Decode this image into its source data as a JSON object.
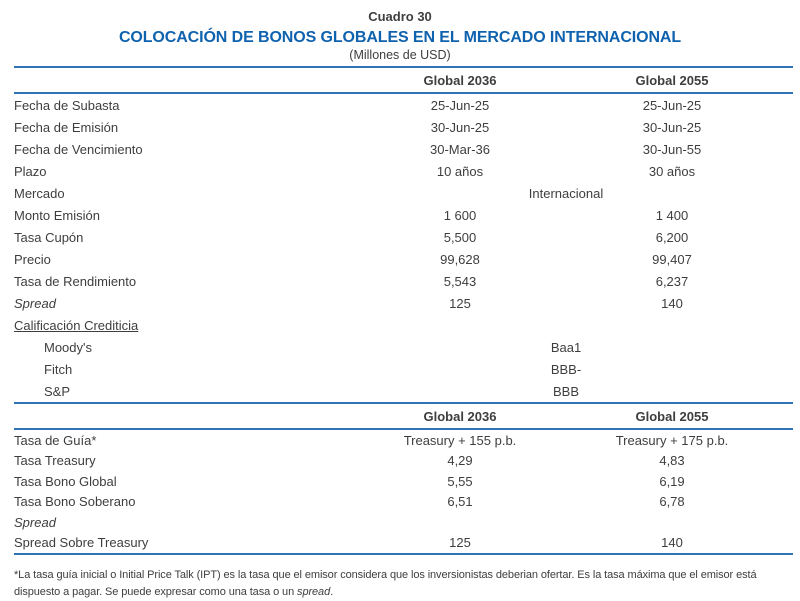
{
  "colors": {
    "title_blue": "#0F62AE",
    "rule_blue": "#2E74B5",
    "text_dark": "#3E3E3E"
  },
  "header": {
    "table_number": "Cuadro 30",
    "title": "COLOCACIÓN DE BONOS GLOBALES EN EL MERCADO INTERNACIONAL",
    "subtitle": "(Millones de USD)"
  },
  "columns": [
    "Global 2036",
    "Global 2055"
  ],
  "section1": {
    "rows": [
      {
        "label": "Fecha de Subasta",
        "v1": "25-Jun-25",
        "v2": "25-Jun-25"
      },
      {
        "label": "Fecha de Emisión",
        "v1": "30-Jun-25",
        "v2": "30-Jun-25"
      },
      {
        "label": "Fecha de Vencimiento",
        "v1": "30-Mar-36",
        "v2": "30-Jun-55"
      },
      {
        "label": "Plazo",
        "v1": "10 años",
        "v2": "30 años"
      },
      {
        "label": "Mercado",
        "merged": "Internacional"
      },
      {
        "label": "Monto Emisión",
        "v1": "1 600",
        "v2": "1 400"
      },
      {
        "label": "Tasa Cupón",
        "v1": "5,500",
        "v2": "6,200"
      },
      {
        "label": "Precio",
        "v1": "99,628",
        "v2": "99,407"
      },
      {
        "label": "Tasa de Rendimiento",
        "v1": "5,543",
        "v2": "6,237"
      },
      {
        "label": "Spread",
        "italic": true,
        "v1": "125",
        "v2": "140"
      },
      {
        "label": "Calificación Crediticia",
        "underline": true,
        "v1": "",
        "v2": ""
      },
      {
        "label": "Moody's",
        "indent": true,
        "merged": "Baa1"
      },
      {
        "label": "Fitch",
        "indent": true,
        "merged": "BBB-"
      },
      {
        "label": "S&P",
        "indent": true,
        "merged": "BBB"
      }
    ]
  },
  "section2": {
    "rows": [
      {
        "label": "Tasa de Guía*",
        "v1": "Treasury + 155 p.b.",
        "v2": "Treasury + 175 p.b."
      },
      {
        "label": "Tasa Treasury",
        "v1": "4,29",
        "v2": "4,83"
      },
      {
        "label": "Tasa Bono Global",
        "v1": "5,55",
        "v2": "6,19"
      },
      {
        "label": "Tasa Bono Soberano",
        "v1": "6,51",
        "v2": "6,78"
      },
      {
        "label": "Spread",
        "italic": true,
        "v1": "",
        "v2": ""
      },
      {
        "label": "Spread Sobre Treasury",
        "v1": "125",
        "v2": "140"
      }
    ]
  },
  "footnote": {
    "line1": "*La tasa guía inicial o Initial Price Talk (IPT) es la tasa que el emisor considera que los inversionistas deberian ofertar. Es la tasa máxima que el emisor está",
    "line2_prefix": "dispuesto a pagar. Se puede expresar como una tasa o un ",
    "line2_italic": "spread",
    "line2_suffix": "."
  }
}
